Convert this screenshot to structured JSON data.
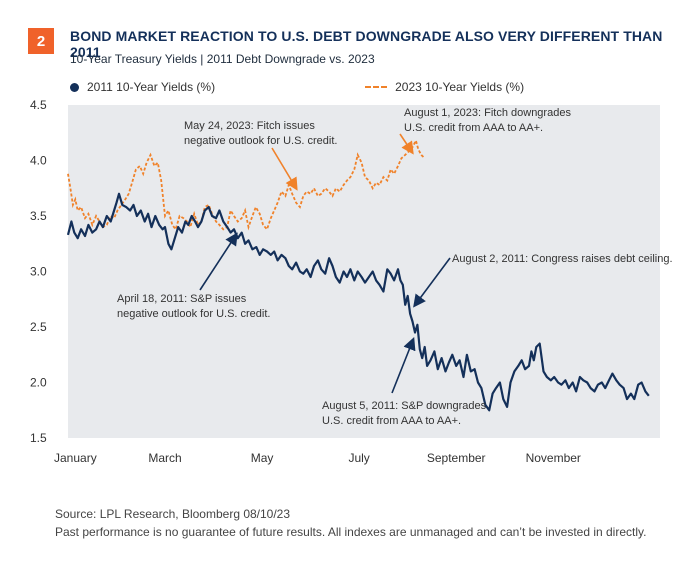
{
  "badge": "2",
  "title": "BOND MARKET REACTION TO U.S. DEBT DOWNGRADE ALSO VERY DIFFERENT THAN 2011",
  "subtitle": "10-Year Treasury Yields | 2011 Debt Downgrade vs. 2023",
  "legend": {
    "series_2011": "2011 10-Year Yields (%)",
    "series_2023": "2023 10-Year Yields (%)"
  },
  "footer": {
    "source": "Source: LPL Research, Bloomberg 08/10/23",
    "disclaimer": "Past performance is no guarantee of future results. All indexes are unmanaged and can’t be invested in directly."
  },
  "colors": {
    "navy": "#14305a",
    "orange": "#f0822a",
    "plot_bg": "#e8eaed",
    "badge": "#f0622a"
  },
  "chart_data": {
    "type": "line",
    "x_unit": "month (1 = Jan 1, 13 = end of Dec)",
    "xlim": [
      1,
      13.2
    ],
    "ylim": [
      1.5,
      4.5
    ],
    "yticks": [
      1.5,
      2.0,
      2.5,
      3.0,
      3.5,
      4.0,
      4.5
    ],
    "ytick_labels": [
      "1.5",
      "2.0",
      "2.5",
      "3.0",
      "3.5",
      "4.0",
      "4.5"
    ],
    "xticks": [
      {
        "label": "January",
        "x": 1
      },
      {
        "label": "March",
        "x": 3
      },
      {
        "label": "May",
        "x": 5
      },
      {
        "label": "July",
        "x": 7
      },
      {
        "label": "September",
        "x": 9
      },
      {
        "label": "November",
        "x": 11
      }
    ],
    "series": [
      {
        "name": "2011 10-Year Yields (%)",
        "style": "solid",
        "x": [
          1.0,
          1.07,
          1.13,
          1.2,
          1.27,
          1.35,
          1.42,
          1.5,
          1.58,
          1.65,
          1.72,
          1.8,
          1.88,
          1.95,
          2.0,
          2.05,
          2.12,
          2.2,
          2.28,
          2.35,
          2.42,
          2.5,
          2.58,
          2.65,
          2.72,
          2.8,
          2.88,
          2.95,
          3.0,
          3.07,
          3.13,
          3.2,
          3.27,
          3.35,
          3.42,
          3.48,
          3.55,
          3.62,
          3.68,
          3.75,
          3.82,
          3.9,
          3.97,
          4.05,
          4.12,
          4.2,
          4.28,
          4.35,
          4.42,
          4.5,
          4.58,
          4.65,
          4.72,
          4.8,
          4.88,
          4.95,
          5.02,
          5.1,
          5.18,
          5.25,
          5.32,
          5.4,
          5.48,
          5.55,
          5.62,
          5.7,
          5.78,
          5.85,
          5.92,
          6.0,
          6.07,
          6.15,
          6.22,
          6.3,
          6.38,
          6.45,
          6.52,
          6.6,
          6.68,
          6.75,
          6.82,
          6.9,
          6.97,
          7.05,
          7.12,
          7.2,
          7.28,
          7.35,
          7.42,
          7.5,
          7.58,
          7.65,
          7.72,
          7.8,
          7.85,
          7.9,
          7.95,
          8.0,
          8.05,
          8.1,
          8.15,
          8.2,
          8.25,
          8.3,
          8.35,
          8.4,
          8.47,
          8.55,
          8.62,
          8.7,
          8.78,
          8.85,
          8.92,
          9.0,
          9.07,
          9.15,
          9.22,
          9.3,
          9.38,
          9.45,
          9.52,
          9.6,
          9.68,
          9.75,
          9.82,
          9.9,
          9.97,
          10.05,
          10.12,
          10.2,
          10.28,
          10.35,
          10.42,
          10.5,
          10.55,
          10.6,
          10.65,
          10.72,
          10.8,
          10.87,
          10.95,
          11.02,
          11.1,
          11.17,
          11.25,
          11.32,
          11.4,
          11.47,
          11.55,
          11.62,
          11.7,
          11.77,
          11.85,
          11.92,
          12.0,
          12.07,
          12.15,
          12.22,
          12.3,
          12.37,
          12.45,
          12.52,
          12.6,
          12.67,
          12.75,
          12.82,
          12.9,
          12.97
        ],
        "y": [
          3.33,
          3.45,
          3.35,
          3.3,
          3.38,
          3.32,
          3.42,
          3.35,
          3.38,
          3.45,
          3.4,
          3.5,
          3.45,
          3.55,
          3.62,
          3.7,
          3.6,
          3.58,
          3.55,
          3.6,
          3.5,
          3.55,
          3.45,
          3.52,
          3.4,
          3.5,
          3.42,
          3.38,
          3.4,
          3.25,
          3.2,
          3.3,
          3.4,
          3.35,
          3.45,
          3.42,
          3.5,
          3.45,
          3.4,
          3.45,
          3.55,
          3.58,
          3.5,
          3.48,
          3.55,
          3.45,
          3.4,
          3.35,
          3.38,
          3.3,
          3.35,
          3.25,
          3.28,
          3.2,
          3.22,
          3.15,
          3.2,
          3.18,
          3.15,
          3.18,
          3.1,
          3.15,
          3.12,
          3.05,
          3.02,
          3.08,
          3.0,
          2.98,
          3.02,
          2.95,
          3.05,
          3.1,
          3.02,
          2.98,
          3.12,
          3.05,
          2.95,
          2.9,
          3.0,
          2.95,
          3.02,
          2.92,
          3.0,
          2.95,
          2.9,
          2.95,
          3.0,
          2.92,
          2.88,
          2.82,
          3.02,
          2.98,
          2.92,
          3.02,
          2.92,
          2.88,
          2.7,
          2.78,
          2.62,
          2.55,
          2.45,
          2.52,
          2.3,
          2.22,
          2.32,
          2.15,
          2.2,
          2.28,
          2.12,
          2.22,
          2.1,
          2.18,
          2.25,
          2.15,
          2.2,
          2.05,
          2.25,
          2.1,
          2.12,
          2.0,
          1.95,
          1.8,
          1.75,
          1.9,
          1.95,
          2.0,
          1.85,
          1.78,
          2.0,
          2.1,
          2.15,
          2.2,
          2.12,
          2.15,
          2.28,
          2.2,
          2.32,
          2.35,
          2.1,
          2.05,
          2.02,
          2.05,
          2.0,
          1.98,
          2.02,
          1.95,
          2.0,
          1.92,
          2.05,
          2.02,
          2.0,
          1.95,
          1.92,
          1.98,
          2.0,
          1.95,
          2.02,
          2.08,
          2.02,
          1.98,
          1.95,
          1.85,
          1.9,
          1.85,
          1.98,
          2.0,
          1.92,
          1.88
        ]
      },
      {
        "name": "2023 10-Year Yields (%)",
        "style": "dashed",
        "x": [
          1.0,
          1.05,
          1.1,
          1.15,
          1.2,
          1.27,
          1.35,
          1.42,
          1.5,
          1.58,
          1.65,
          1.72,
          1.8,
          1.88,
          1.95,
          2.02,
          2.1,
          2.18,
          2.25,
          2.32,
          2.4,
          2.48,
          2.55,
          2.62,
          2.7,
          2.78,
          2.85,
          2.92,
          3.0,
          3.07,
          3.15,
          3.22,
          3.3,
          3.38,
          3.45,
          3.52,
          3.6,
          3.68,
          3.75,
          3.82,
          3.9,
          3.97,
          4.05,
          4.12,
          4.2,
          4.28,
          4.35,
          4.42,
          4.5,
          4.58,
          4.65,
          4.72,
          4.8,
          4.87,
          4.95,
          5.02,
          5.1,
          5.18,
          5.25,
          5.32,
          5.4,
          5.48,
          5.55,
          5.62,
          5.7,
          5.78,
          5.85,
          5.92,
          6.0,
          6.07,
          6.15,
          6.22,
          6.3,
          6.38,
          6.45,
          6.52,
          6.6,
          6.68,
          6.75,
          6.82,
          6.9,
          6.97,
          7.05,
          7.12,
          7.2,
          7.28,
          7.35,
          7.42,
          7.5,
          7.58,
          7.65,
          7.72,
          7.8,
          7.87,
          7.95,
          8.02,
          8.1,
          8.17,
          8.22,
          8.28,
          8.35
        ],
        "y": [
          3.88,
          3.75,
          3.6,
          3.65,
          3.55,
          3.58,
          3.48,
          3.52,
          3.42,
          3.5,
          3.45,
          3.4,
          3.42,
          3.5,
          3.48,
          3.55,
          3.6,
          3.65,
          3.7,
          3.8,
          3.92,
          3.95,
          3.88,
          3.98,
          4.05,
          3.95,
          3.98,
          3.82,
          3.5,
          3.55,
          3.42,
          3.38,
          3.5,
          3.48,
          3.45,
          3.4,
          3.52,
          3.42,
          3.45,
          3.58,
          3.6,
          3.52,
          3.45,
          3.42,
          3.38,
          3.4,
          3.55,
          3.5,
          3.45,
          3.48,
          3.55,
          3.4,
          3.5,
          3.58,
          3.52,
          3.42,
          3.38,
          3.48,
          3.55,
          3.62,
          3.72,
          3.68,
          3.78,
          3.7,
          3.62,
          3.58,
          3.68,
          3.72,
          3.7,
          3.75,
          3.68,
          3.7,
          3.75,
          3.72,
          3.68,
          3.75,
          3.72,
          3.78,
          3.82,
          3.85,
          3.92,
          4.05,
          3.98,
          3.85,
          3.82,
          3.75,
          3.8,
          3.78,
          3.85,
          3.82,
          3.92,
          3.88,
          3.95,
          4.02,
          4.05,
          4.08,
          4.12,
          4.18,
          4.1,
          4.05,
          4.02
        ]
      }
    ],
    "annotations": [
      {
        "lines": [
          "May 24, 2023: Fitch issues",
          "negative outlook for U.S. credit."
        ]
      },
      {
        "lines": [
          "August 1, 2023: Fitch downgrades",
          "U.S. credit from AAA to AA+."
        ]
      },
      {
        "lines": [
          "August 2, 2011: Congress raises debt ceiling."
        ]
      },
      {
        "lines": [
          "April 18, 2011: S&P issues",
          "negative outlook for U.S. credit."
        ]
      },
      {
        "lines": [
          "August 5, 2011: S&P downgrades",
          "U.S. credit from AAA to AA+."
        ]
      }
    ]
  }
}
